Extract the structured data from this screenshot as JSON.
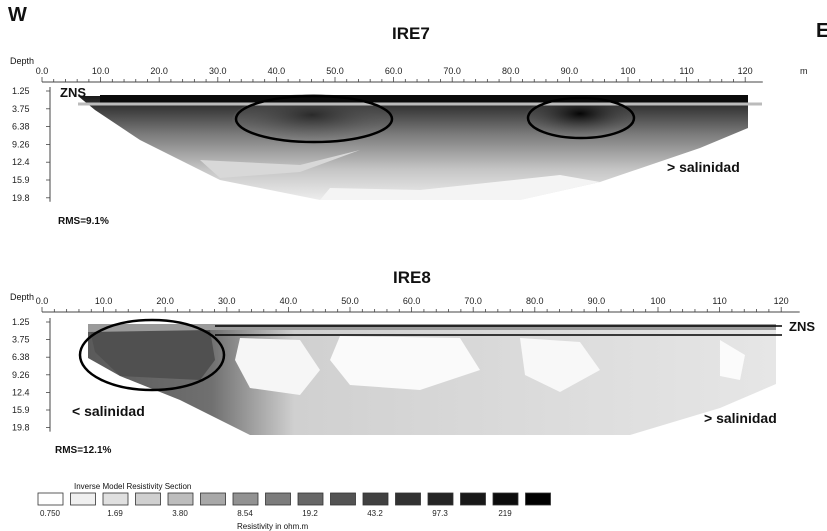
{
  "corners": {
    "left": "W",
    "right": "E"
  },
  "x_ticks": [
    "0.0",
    "10.0",
    "20.0",
    "30.0",
    "40.0",
    "50.0",
    "60.0",
    "70.0",
    "80.0",
    "90.0",
    "100",
    "110",
    "120",
    "m"
  ],
  "depth_ticks": [
    "1.25",
    "3.75",
    "6.38",
    "9.26",
    "12.4",
    "15.9",
    "19.8"
  ],
  "profiles": [
    {
      "title": "IRE7",
      "depth_label": "Depth",
      "zns": "ZNS",
      "rms": "RMS=9.1%",
      "annotation_right": "> salinidad"
    },
    {
      "title": "IRE8",
      "depth_label": "Depth",
      "zns": "ZNS",
      "rms": "RMS=12.1%",
      "annotation_left": "< salinidad",
      "annotation_right": "> salinidad"
    }
  ],
  "legend": {
    "title": "Inverse Model Resistivity Section",
    "unit": "Resistivity in ohm.m",
    "values": [
      "0.750",
      "1.69",
      "3.80",
      "8.54",
      "19.2",
      "43.2",
      "97.3",
      "219"
    ],
    "colors": [
      "#ffffff",
      "#f0f0f0",
      "#e0e0e0",
      "#d0d0d0",
      "#bdbdbd",
      "#a8a8a8",
      "#929292",
      "#7c7c7c",
      "#676767",
      "#535353",
      "#414141",
      "#323232",
      "#252525",
      "#181818",
      "#0c0c0c",
      "#000000"
    ]
  }
}
